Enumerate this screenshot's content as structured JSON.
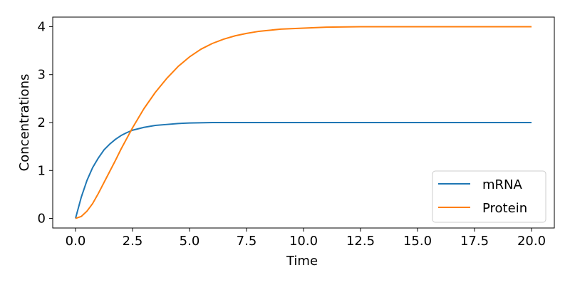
{
  "chart_data": {
    "type": "line",
    "xlabel": "Time",
    "ylabel": "Concentrations",
    "xlim": [
      -1.0,
      21.0
    ],
    "ylim": [
      -0.2,
      4.2
    ],
    "xticks": [
      "0.0",
      "2.5",
      "5.0",
      "7.5",
      "10.0",
      "12.5",
      "15.0",
      "17.5",
      "20.0"
    ],
    "yticks": [
      "0",
      "1",
      "2",
      "3",
      "4"
    ],
    "grid": false,
    "legend_position": "bottom-right",
    "series": [
      {
        "name": "mRNA",
        "color": "#1f77b4",
        "x": [
          0,
          0.25,
          0.5,
          0.75,
          1,
          1.25,
          1.5,
          1.75,
          2,
          2.25,
          2.5,
          3,
          3.5,
          4,
          4.5,
          5,
          6,
          7,
          8,
          10,
          12.5,
          15,
          17.5,
          20
        ],
        "y": [
          0,
          0.44,
          0.79,
          1.06,
          1.26,
          1.43,
          1.55,
          1.65,
          1.73,
          1.79,
          1.84,
          1.9,
          1.94,
          1.96,
          1.98,
          1.99,
          2.0,
          2.0,
          2.0,
          2.0,
          2.0,
          2.0,
          2.0,
          2.0
        ]
      },
      {
        "name": "Protein",
        "color": "#ff7f0e",
        "x": [
          0,
          0.25,
          0.5,
          0.75,
          1,
          1.25,
          1.5,
          1.75,
          2,
          2.25,
          2.5,
          3,
          3.5,
          4,
          4.5,
          5,
          5.5,
          6,
          6.5,
          7,
          7.5,
          8,
          9,
          10,
          11,
          12.5,
          15,
          17.5,
          20
        ],
        "y": [
          0,
          0.04,
          0.15,
          0.31,
          0.52,
          0.75,
          0.98,
          1.21,
          1.45,
          1.67,
          1.89,
          2.29,
          2.63,
          2.92,
          3.17,
          3.37,
          3.53,
          3.65,
          3.74,
          3.81,
          3.86,
          3.9,
          3.95,
          3.97,
          3.99,
          4.0,
          4.0,
          4.0,
          4.0
        ]
      }
    ]
  }
}
